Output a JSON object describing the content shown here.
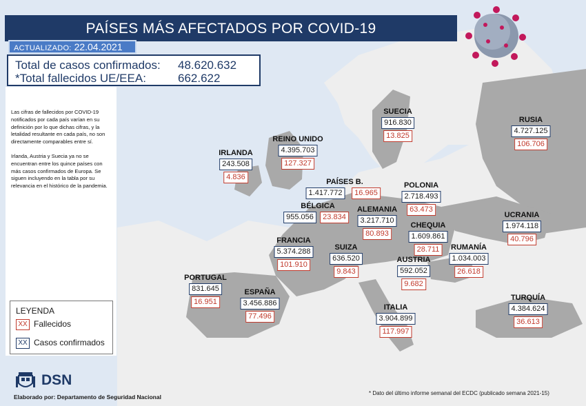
{
  "title": "PAÍSES MÁS AFECTADOS POR COVID-19",
  "updated": {
    "label": "ACTUALIZADO:",
    "date": "22.04.2021"
  },
  "totals": {
    "confirmed_label": "Total de casos confirmados:",
    "confirmed_value": "48.620.632",
    "deaths_label": "*Total fallecidos UE/EEA:",
    "deaths_value": "662.622"
  },
  "notes": [
    "Las cifras de fallecidos por COVID-19 notificados por cada país varían en su definición por lo que dichas cifras, y la letalidad resultante en cada país, no son directamente comparables entre sí.",
    "Irlanda, Austria y Suecia ya no se encuentran entre los quince países con más casos confirmados de Europa. Se siguen incluyendo en la tabla por su relevancia en el histórico de la pandemia."
  ],
  "legend": {
    "title": "LEYENDA",
    "swatch_text": "XX",
    "deaths_label": "Fallecidos",
    "cases_label": "Casos confirmados",
    "deaths_color": "#c0392b",
    "cases_color": "#1f3a67"
  },
  "logo": {
    "text": "DSN",
    "icon": "spain-coat-of-arms-icon"
  },
  "credit": "Elaborado por: Departamento de Seguridad Nacional",
  "footnote": "* Dato del último informe semanal del ECDC (publicado semana 2021-15)",
  "colors": {
    "banner": "#1f3a67",
    "sea": "#dfe8f3",
    "land": "#eeeeee",
    "target_land": "#a9a9a9"
  },
  "countries": [
    {
      "name": "SUECIA",
      "cases": "916.830",
      "deaths": "13.825"
    },
    {
      "name": "RUSIA",
      "cases": "4.727.125",
      "deaths": "106.706"
    },
    {
      "name": "REINO UNIDO",
      "cases": "4.395.703",
      "deaths": "127.327"
    },
    {
      "name": "IRLANDA",
      "cases": "243.508",
      "deaths": "4.836"
    },
    {
      "name": "PAÍSES B.",
      "cases": "1.417.772",
      "deaths": "16.965"
    },
    {
      "name": "POLONIA",
      "cases": "2.718.493",
      "deaths": "63.473"
    },
    {
      "name": "BÉLGICA",
      "cases": "955.056",
      "deaths": "23.834"
    },
    {
      "name": "ALEMANIA",
      "cases": "3.217.710",
      "deaths": "80.893"
    },
    {
      "name": "UCRANIA",
      "cases": "1.974.118",
      "deaths": "40.796"
    },
    {
      "name": "CHEQUIA",
      "cases": "1.609.861",
      "deaths": "28.711"
    },
    {
      "name": "FRANCIA",
      "cases": "5.374.288",
      "deaths": "101.910"
    },
    {
      "name": "SUIZA",
      "cases": "636.520",
      "deaths": "9.843"
    },
    {
      "name": "RUMANÍA",
      "cases": "1.034.003",
      "deaths": "26.618"
    },
    {
      "name": "AUSTRIA",
      "cases": "592.052",
      "deaths": "9.682"
    },
    {
      "name": "PORTUGAL",
      "cases": "831.645",
      "deaths": "16.951"
    },
    {
      "name": "ESPAÑA",
      "cases": "3.456.886",
      "deaths": "77.496"
    },
    {
      "name": "ITALIA",
      "cases": "3.904.899",
      "deaths": "117.997"
    },
    {
      "name": "TURQUÍA",
      "cases": "4.384.624",
      "deaths": "36.613"
    }
  ]
}
